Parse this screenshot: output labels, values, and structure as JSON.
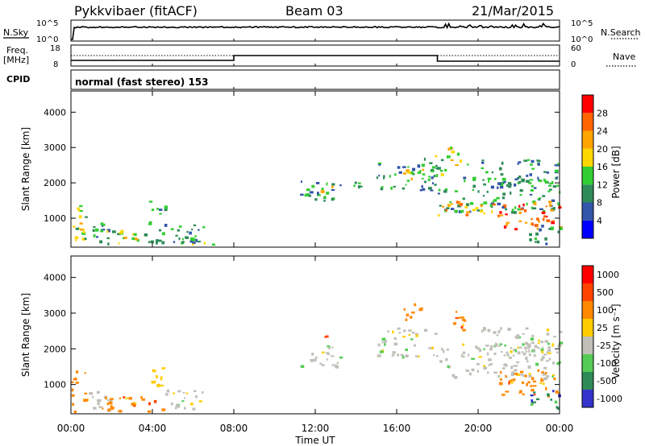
{
  "header": {
    "station": "Pykkvibaer (fitACF)",
    "beam": "Beam 03",
    "date": "21/Mar/2015"
  },
  "panels": {
    "nsky": {
      "left_label": "N.Sky",
      "left_ticks": [
        "10^5",
        "10^0"
      ],
      "right_ticks": [
        "10^5",
        "10^0"
      ],
      "right_label": "N.Search"
    },
    "freq": {
      "left_label_1": "Freq.",
      "left_label_2": "[MHz]",
      "left_ticks": [
        "18",
        "8"
      ],
      "right_ticks": [
        "60",
        "0"
      ],
      "right_label": "Nave"
    },
    "cpid": {
      "label": "CPID",
      "text": "normal (fast stereo) 153"
    }
  },
  "colors": {
    "power": [
      "#0000ff",
      "#3355aa",
      "#2e8b57",
      "#32cd32",
      "#ffd700",
      "#ffa500",
      "#ff6600",
      "#ff0000"
    ],
    "velocity": [
      "#3333cc",
      "#2e8b57",
      "#55cc55",
      "#c0c0b8",
      "#ffcc00",
      "#ff8800",
      "#ff4400",
      "#ff0000"
    ]
  },
  "chart_data": [
    {
      "type": "heatmap",
      "name": "power",
      "ylabel": "Slant Range [km]",
      "ylim": [
        180,
        4600
      ],
      "yticks": [
        "4000",
        "3000",
        "2000",
        "1000"
      ],
      "xlim": [
        0,
        24
      ],
      "colorbar": {
        "label": "Power [dB]",
        "ticks": [
          "28",
          "24",
          "20",
          "16",
          "12",
          "8",
          "4"
        ],
        "range": [
          0,
          32
        ]
      },
      "regions": [
        {
          "t0": 0.0,
          "t1": 0.8,
          "r0": 250,
          "r1": 1400,
          "v": 14
        },
        {
          "t0": 0.2,
          "t1": 0.6,
          "r0": 700,
          "r1": 1100,
          "v": 22
        },
        {
          "t0": 0.8,
          "t1": 2.0,
          "r0": 250,
          "r1": 900,
          "v": 8
        },
        {
          "t0": 1.5,
          "t1": 4.5,
          "r0": 250,
          "r1": 700,
          "v": 12
        },
        {
          "t0": 2.5,
          "t1": 3.3,
          "r0": 300,
          "r1": 600,
          "v": 22
        },
        {
          "t0": 3.8,
          "t1": 4.6,
          "r0": 800,
          "r1": 1500,
          "v": 10
        },
        {
          "t0": 4.5,
          "t1": 6.5,
          "r0": 300,
          "r1": 900,
          "v": 8
        },
        {
          "t0": 5.0,
          "t1": 7.0,
          "r0": 250,
          "r1": 500,
          "v": 12
        },
        {
          "t0": 11.2,
          "t1": 13.2,
          "r0": 1500,
          "r1": 2100,
          "v": 10
        },
        {
          "t0": 11.8,
          "t1": 12.8,
          "r0": 1650,
          "r1": 1950,
          "v": 18
        },
        {
          "t0": 13.3,
          "t1": 14.2,
          "r0": 1700,
          "r1": 2050,
          "v": 8
        },
        {
          "t0": 15.0,
          "t1": 18.0,
          "r0": 1800,
          "r1": 2600,
          "v": 8
        },
        {
          "t0": 16.3,
          "t1": 17.3,
          "r0": 2000,
          "r1": 2500,
          "v": 16
        },
        {
          "t0": 17.0,
          "t1": 18.5,
          "r0": 2200,
          "r1": 2800,
          "v": 12
        },
        {
          "t0": 18.0,
          "t1": 24.0,
          "r0": 1200,
          "r1": 2200,
          "v": 10
        },
        {
          "t0": 18.0,
          "t1": 21.0,
          "r0": 1100,
          "r1": 1500,
          "v": 20
        },
        {
          "t0": 18.5,
          "t1": 19.5,
          "r0": 2500,
          "r1": 3100,
          "v": 16
        },
        {
          "t0": 20.0,
          "t1": 24.0,
          "r0": 1900,
          "r1": 2700,
          "v": 10
        },
        {
          "t0": 21.0,
          "t1": 24.0,
          "r0": 700,
          "r1": 1500,
          "v": 24
        },
        {
          "t0": 22.5,
          "t1": 24.0,
          "r0": 300,
          "r1": 900,
          "v": 10
        }
      ]
    },
    {
      "type": "heatmap",
      "name": "velocity",
      "ylabel": "Slant Range [km]",
      "ylim": [
        180,
        4600
      ],
      "yticks": [
        "4000",
        "3000",
        "2000",
        "1000"
      ],
      "xlim": [
        0,
        24
      ],
      "xlabel": "Time UT",
      "xticks": [
        "00:00",
        "04:00",
        "08:00",
        "12:00",
        "16:00",
        "20:00",
        "00:00"
      ],
      "colorbar": {
        "label": "Velocity [m s⁻¹]",
        "ticks": [
          "1000",
          "500",
          "100",
          "25",
          "-25",
          "-100",
          "-500",
          "-1000"
        ]
      },
      "regions": [
        {
          "t0": 0.0,
          "t1": 0.8,
          "r0": 250,
          "r1": 1400,
          "c": 5
        },
        {
          "t0": 0.8,
          "t1": 2.0,
          "r0": 250,
          "r1": 900,
          "c": 3
        },
        {
          "t0": 1.5,
          "t1": 4.5,
          "r0": 250,
          "r1": 700,
          "c": 5
        },
        {
          "t0": 3.8,
          "t1": 4.6,
          "r0": 800,
          "r1": 1500,
          "c": 4
        },
        {
          "t0": 4.5,
          "t1": 6.5,
          "r0": 300,
          "r1": 900,
          "c": 3
        },
        {
          "t0": 11.2,
          "t1": 13.2,
          "r0": 1500,
          "r1": 2100,
          "c": 3
        },
        {
          "t0": 12.3,
          "t1": 12.8,
          "r0": 2300,
          "r1": 2500,
          "c": 6
        },
        {
          "t0": 15.0,
          "t1": 18.0,
          "r0": 1800,
          "r1": 2600,
          "c": 3
        },
        {
          "t0": 16.3,
          "t1": 17.3,
          "r0": 2800,
          "r1": 3300,
          "c": 5
        },
        {
          "t0": 18.0,
          "t1": 24.0,
          "r0": 1200,
          "r1": 2200,
          "c": 3
        },
        {
          "t0": 18.5,
          "t1": 19.5,
          "r0": 2500,
          "r1": 3100,
          "c": 5
        },
        {
          "t0": 20.0,
          "t1": 24.0,
          "r0": 1900,
          "r1": 2700,
          "c": 3
        },
        {
          "t0": 21.0,
          "t1": 24.0,
          "r0": 700,
          "r1": 1500,
          "c": 5
        },
        {
          "t0": 22.5,
          "t1": 24.0,
          "r0": 300,
          "r1": 900,
          "c": 1
        }
      ]
    }
  ]
}
